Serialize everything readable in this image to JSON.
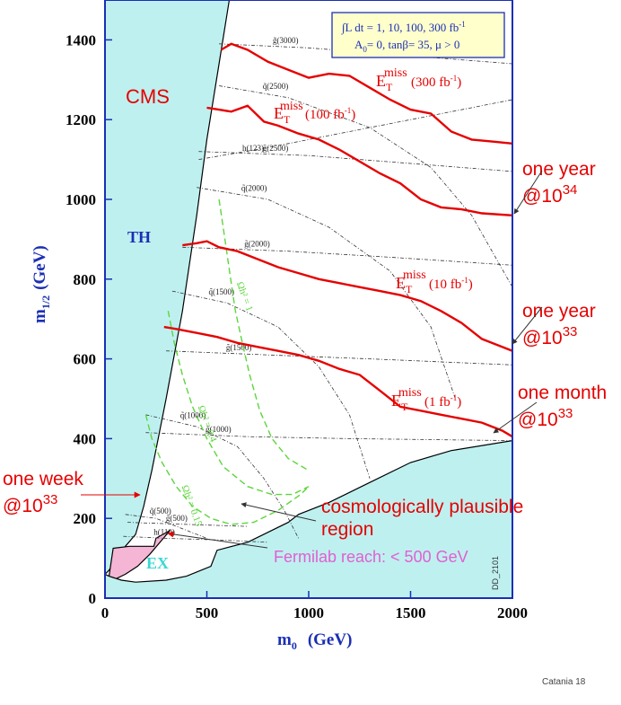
{
  "chart_data": {
    "type": "line",
    "xlabel": "m",
    "xlabel_sub": "0",
    "xlabel_unit": "(GeV)",
    "ylabel": "m",
    "ylabel_sub": "1/2",
    "ylabel_unit": "(GeV)",
    "xlim": [
      0,
      2000
    ],
    "ylim": [
      0,
      1500
    ],
    "xticks": [
      "0",
      "500",
      "1000",
      "1500",
      "2000"
    ],
    "yticks": [
      "0",
      "200",
      "400",
      "600",
      "800",
      "1000",
      "1200",
      "1400"
    ],
    "legend_box": {
      "line1": "∫L dt = 1, 10, 100, 300 fb",
      "line1_sup": "-1",
      "line2": "A",
      "line2_sub": "0",
      "line2_rest": "= 0, tanβ= 35, μ > 0"
    },
    "regions": [
      {
        "name": "TH",
        "label": "TH",
        "color": "#bff0f0",
        "boundary": [
          [
            0,
            1500
          ],
          [
            610,
            1500
          ],
          [
            560,
            1340
          ],
          [
            500,
            1150
          ],
          [
            450,
            960
          ],
          [
            380,
            720
          ],
          [
            300,
            500
          ],
          [
            230,
            320
          ],
          [
            190,
            230
          ],
          [
            150,
            160
          ],
          [
            100,
            130
          ],
          [
            20,
            70
          ],
          [
            0,
            60
          ]
        ]
      },
      {
        "name": "EX",
        "label": "EX",
        "color": "#f5b5d5",
        "boundary": [
          [
            40,
            125
          ],
          [
            120,
            130
          ],
          [
            240,
            130
          ],
          [
            250,
            150
          ],
          [
            320,
            170
          ],
          [
            220,
            110
          ],
          [
            160,
            80
          ],
          [
            100,
            60
          ],
          [
            40,
            45
          ],
          [
            20,
            55
          ]
        ]
      },
      {
        "name": "lower",
        "label": "",
        "color": "#bff0f0",
        "boundary": [
          [
            2000,
            395
          ],
          [
            1700,
            370
          ],
          [
            1500,
            340
          ],
          [
            1300,
            290
          ],
          [
            1100,
            240
          ],
          [
            950,
            210
          ],
          [
            900,
            190
          ],
          [
            700,
            140
          ],
          [
            550,
            120
          ],
          [
            520,
            80
          ],
          [
            400,
            55
          ],
          [
            300,
            45
          ],
          [
            150,
            40
          ],
          [
            80,
            45
          ],
          [
            20,
            55
          ],
          [
            0,
            60
          ],
          [
            0,
            0
          ],
          [
            2000,
            0
          ]
        ]
      }
    ],
    "series": [
      {
        "name": "E_T miss (300 fb-1)",
        "color": "#e60000",
        "label": "E",
        "label_sub": "T",
        "label_sup": "miss",
        "label_rest": "(300 fb",
        "label_unit_sup": "-1",
        "label_close": ")",
        "x": [
          570,
          620,
          700,
          800,
          900,
          1000,
          1100,
          1200,
          1300,
          1400,
          1500,
          1600,
          1700,
          1800,
          1900,
          2000
        ],
        "y": [
          1375,
          1390,
          1375,
          1345,
          1325,
          1305,
          1315,
          1310,
          1280,
          1250,
          1225,
          1215,
          1170,
          1150,
          1145,
          1140
        ]
      },
      {
        "name": "E_T miss (100 fb-1)",
        "color": "#e60000",
        "label": "E",
        "label_sub": "T",
        "label_sup": "miss",
        "label_rest": "(100 fb",
        "label_unit_sup": "-1",
        "label_close": ")",
        "x": [
          500,
          560,
          620,
          700,
          780,
          850,
          950,
          1050,
          1150,
          1250,
          1350,
          1450,
          1550,
          1650,
          1750,
          1850,
          2000
        ],
        "y": [
          1230,
          1225,
          1220,
          1235,
          1195,
          1185,
          1165,
          1150,
          1125,
          1095,
          1065,
          1040,
          1000,
          980,
          975,
          965,
          960
        ]
      },
      {
        "name": "E_T miss (10 fb-1)",
        "color": "#e60000",
        "label": "E",
        "label_sub": "T",
        "label_sup": "miss",
        "label_rest": "(10 fb",
        "label_unit_sup": "-1",
        "label_close": ")",
        "x": [
          380,
          450,
          500,
          560,
          650,
          750,
          850,
          950,
          1050,
          1150,
          1250,
          1350,
          1450,
          1550,
          1650,
          1750,
          1850,
          1950,
          2000
        ],
        "y": [
          885,
          890,
          895,
          880,
          870,
          850,
          830,
          815,
          800,
          790,
          780,
          770,
          760,
          745,
          720,
          690,
          650,
          630,
          620
        ]
      },
      {
        "name": "E_T miss (1 fb-1)",
        "color": "#e60000",
        "label": "E",
        "label_sub": "T",
        "label_sup": "miss",
        "label_rest": "(1 fb",
        "label_unit_sup": "-1",
        "label_close": ")",
        "x": [
          290,
          350,
          450,
          550,
          650,
          750,
          850,
          950,
          1050,
          1150,
          1250,
          1350,
          1450,
          1550,
          1650,
          1750,
          1850,
          1950,
          2000
        ],
        "y": [
          680,
          675,
          665,
          655,
          640,
          630,
          620,
          610,
          595,
          575,
          560,
          520,
          480,
          470,
          460,
          450,
          440,
          420,
          405
        ]
      }
    ],
    "mass_contours": [
      {
        "name": "gluino-3000",
        "label": "g̃(3000)",
        "x": [
          560,
          1000,
          1500,
          2000
        ],
        "y": [
          1390,
          1380,
          1360,
          1340
        ]
      },
      {
        "name": "gluino-2500",
        "label": "g̃(2500)",
        "x": [
          460,
          1000,
          1500,
          2000
        ],
        "y": [
          1120,
          1110,
          1090,
          1070
        ]
      },
      {
        "name": "gluino-2000",
        "label": "g̃(2000)",
        "x": [
          380,
          900,
          1400,
          2000
        ],
        "y": [
          880,
          870,
          855,
          835
        ]
      },
      {
        "name": "gluino-1500",
        "label": "g̃(1500)",
        "x": [
          300,
          800,
          1300,
          2000
        ],
        "y": [
          620,
          610,
          600,
          585
        ]
      },
      {
        "name": "gluino-1000",
        "label": "g̃(1000)",
        "x": [
          200,
          700,
          1200,
          2000
        ],
        "y": [
          415,
          405,
          400,
          395
        ]
      },
      {
        "name": "gluino-500",
        "label": "g̃(500)",
        "x": [
          110,
          400,
          700
        ],
        "y": [
          190,
          185,
          180
        ]
      },
      {
        "name": "squark-2500",
        "label": "q̃(2500)",
        "x": [
          560,
          900,
          1300,
          1600,
          1800,
          2000
        ],
        "y": [
          1285,
          1255,
          1180,
          1080,
          960,
          780
        ]
      },
      {
        "name": "squark-2000",
        "label": "q̃(2000)",
        "x": [
          450,
          800,
          1100,
          1400,
          1600,
          1720
        ],
        "y": [
          1030,
          1000,
          930,
          820,
          680,
          500
        ]
      },
      {
        "name": "squark-1500",
        "label": "q̃(1500)",
        "x": [
          330,
          600,
          850,
          1050,
          1200,
          1300
        ],
        "y": [
          770,
          740,
          680,
          580,
          460,
          300
        ]
      },
      {
        "name": "squark-1000",
        "label": "q̃(1000)",
        "x": [
          200,
          450,
          650,
          780,
          880,
          950
        ],
        "y": [
          460,
          430,
          380,
          300,
          220,
          150
        ]
      },
      {
        "name": "squark-500",
        "label": "q̃(500)",
        "x": [
          100,
          250,
          400,
          500
        ],
        "y": [
          210,
          200,
          170,
          150
        ]
      },
      {
        "name": "higgs-123",
        "label": "h(123)",
        "x": [
          460,
          800,
          1200,
          1600,
          2000
        ],
        "y": [
          1100,
          1130,
          1170,
          1210,
          1250
        ]
      },
      {
        "name": "higgs-110",
        "label": "h(110)",
        "x": [
          90,
          300,
          600,
          800
        ],
        "y": [
          155,
          150,
          145,
          140
        ]
      }
    ],
    "relic_contours": [
      {
        "name": "omega-1",
        "label": "Ωh² = 1",
        "x": [
          560,
          580,
          600,
          620,
          640,
          670,
          710,
          760,
          820,
          900,
          1000
        ],
        "y": [
          1000,
          930,
          860,
          790,
          720,
          650,
          560,
          470,
          400,
          350,
          320
        ]
      },
      {
        "name": "omega-0.4",
        "label": "Ωh² = 0.4",
        "x": [
          310,
          340,
          380,
          430,
          500,
          580,
          700,
          820,
          920,
          1000
        ],
        "y": [
          720,
          640,
          560,
          480,
          400,
          330,
          280,
          260,
          260,
          280
        ]
      },
      {
        "name": "omega-0.15",
        "label": "Ωh² = 0.15",
        "x": [
          200,
          230,
          280,
          350,
          430,
          520,
          620,
          730,
          850,
          960,
          1000
        ],
        "y": [
          460,
          400,
          340,
          280,
          230,
          200,
          185,
          190,
          220,
          260,
          280
        ]
      }
    ],
    "annotations": [
      {
        "name": "cms-label",
        "text": "CMS",
        "color": "#e60000"
      },
      {
        "name": "th-label",
        "text": "TH",
        "color": "#1a2fb5"
      },
      {
        "name": "ex-label",
        "text": "EX",
        "color": "#3bd6d6"
      },
      {
        "name": "one-year-1e34",
        "text": "one year",
        "text2": "@10",
        "sup": "34",
        "color": "#e60000"
      },
      {
        "name": "one-year-1e33",
        "text": "one year",
        "text2": "@10",
        "sup": "33",
        "color": "#e60000"
      },
      {
        "name": "one-month-1e33",
        "text": "one month",
        "text2": "@10",
        "sup": "33",
        "color": "#e60000"
      },
      {
        "name": "one-week-1e33",
        "text": "one week",
        "text2": "@10",
        "sup": "33",
        "color": "#e60000"
      },
      {
        "name": "cosmo-region",
        "text": "cosmologically plausible",
        "text2": "region",
        "color": "#e60000"
      },
      {
        "name": "fermilab-reach",
        "text": "Fermilab reach: < 500 GeV",
        "color": "#e060d0"
      }
    ],
    "side_label": "DD_2101",
    "footer": "Catania 18"
  },
  "colors": {
    "reach": "#e60000",
    "axis_label": "#1a2fb5",
    "cyan_fill": "#bff0f0",
    "pink_fill": "#f5b5d5",
    "relic": "#5cd63c",
    "contour": "#333333",
    "legend_bg": "#ffffcc",
    "legend_border": "#1a2fb5"
  }
}
